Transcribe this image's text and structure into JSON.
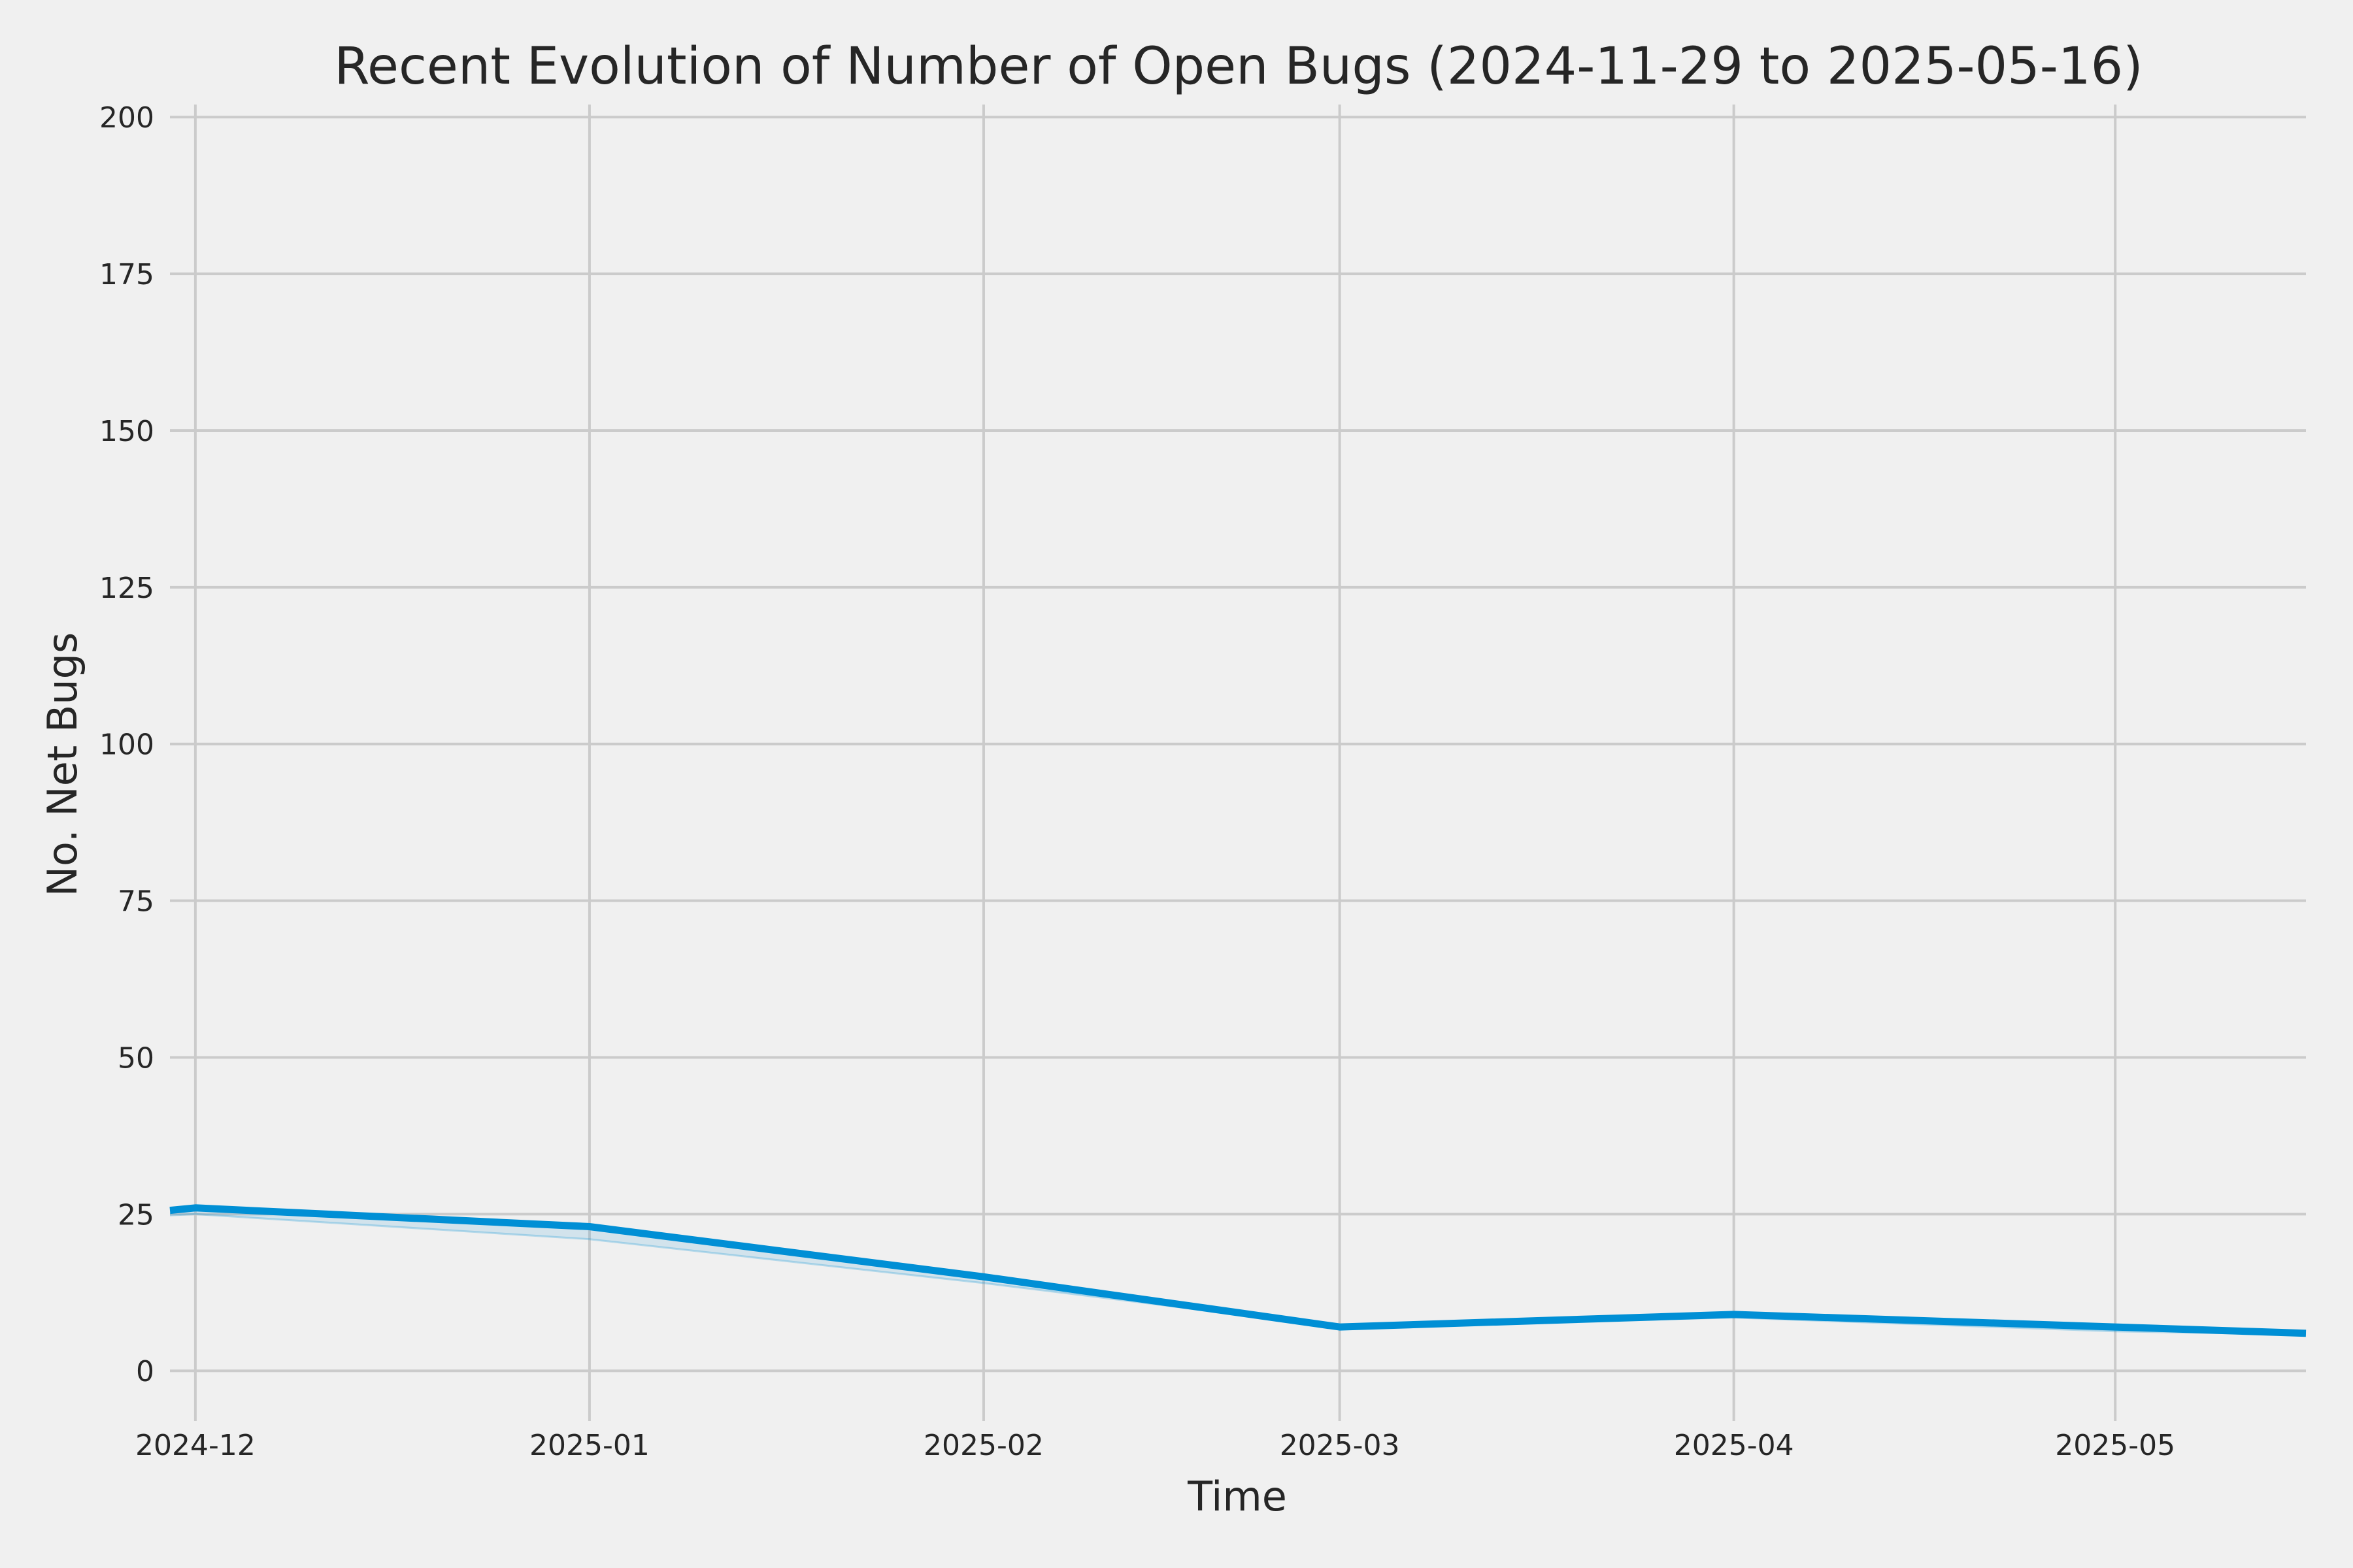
{
  "colors": {
    "background": "#f0f0f0",
    "grid": "#cbcbcb",
    "line": "#008fd5",
    "text": "#262626"
  },
  "chart_data": {
    "type": "line",
    "title": "Recent Evolution of Number of Open Bugs (2024-11-29 to 2025-05-16)",
    "xlabel": "Time",
    "ylabel": "No. Net Bugs",
    "ylim": [
      -8,
      202
    ],
    "xlim": [
      "2024-11-29",
      "2025-05-16"
    ],
    "grid": true,
    "x_ticks": [
      {
        "date": "2024-12-01",
        "label": "2024-12"
      },
      {
        "date": "2025-01-01",
        "label": "2025-01"
      },
      {
        "date": "2025-02-01",
        "label": "2025-02"
      },
      {
        "date": "2025-03-01",
        "label": "2025-03"
      },
      {
        "date": "2025-04-01",
        "label": "2025-04"
      },
      {
        "date": "2025-05-01",
        "label": "2025-05"
      }
    ],
    "y_ticks": [
      0,
      25,
      50,
      75,
      100,
      125,
      150,
      175,
      200
    ],
    "series": [
      {
        "x": [
          "2024-11-29",
          "2024-12-01",
          "2025-01-01",
          "2025-02-01",
          "2025-03-01",
          "2025-04-01",
          "2025-05-01",
          "2025-05-16"
        ],
        "y": [
          25.6,
          26,
          23,
          15,
          7,
          9,
          7,
          6
        ]
      }
    ],
    "band": {
      "x": [
        "2024-11-29",
        "2024-12-01",
        "2025-01-01",
        "2025-02-01",
        "2025-03-01",
        "2025-04-01",
        "2025-05-01",
        "2025-05-16"
      ],
      "y": [
        24.8,
        25,
        21,
        14,
        7,
        8.5,
        6.3,
        5.8
      ]
    }
  }
}
